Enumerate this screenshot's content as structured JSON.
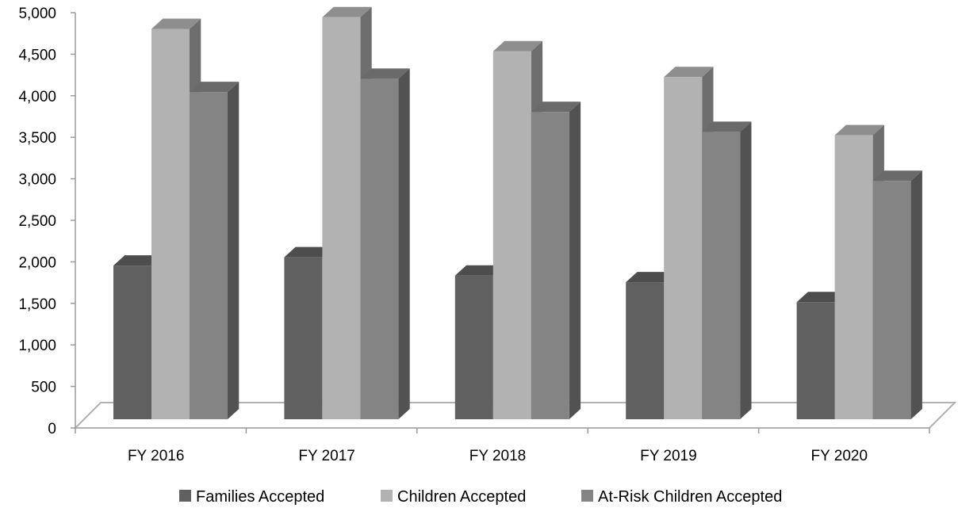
{
  "chart_data": {
    "type": "bar",
    "title": "",
    "xlabel": "",
    "ylabel": "",
    "ylim": [
      0,
      5000
    ],
    "yticks": [
      0,
      500,
      1000,
      1500,
      2000,
      2500,
      3000,
      3500,
      4000,
      4500,
      5000
    ],
    "ytick_labels": [
      "0",
      "500",
      "1,000",
      "1,500",
      "2,000",
      "2,500",
      "3,000",
      "3,500",
      "4,000",
      "4,500",
      "5,000"
    ],
    "categories": [
      "FY 2016",
      "FY 2017",
      "FY 2018",
      "FY 2019",
      "FY 2020"
    ],
    "series": [
      {
        "name": "Families Accepted",
        "values": [
          1850,
          1950,
          1730,
          1650,
          1410
        ],
        "color": "#606060"
      },
      {
        "name": "Children Accepted",
        "values": [
          4700,
          4840,
          4430,
          4120,
          3420
        ],
        "color": "#b2b2b2"
      },
      {
        "name": "At-Risk Children Accepted",
        "values": [
          3940,
          4100,
          3700,
          3460,
          2870
        ],
        "color": "#848484"
      }
    ],
    "legend_position": "bottom",
    "grid": false,
    "style": "3d-column"
  }
}
